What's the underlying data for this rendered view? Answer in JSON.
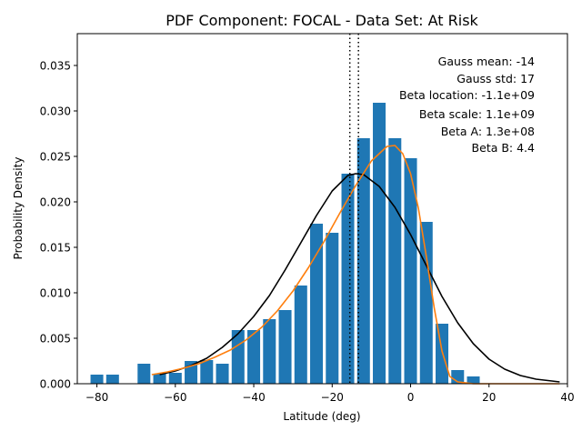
{
  "chart_data": {
    "type": "bar",
    "title": "PDF Component: FOCAL - Data Set: At Risk",
    "xlabel": "Latitude (deg)",
    "ylabel": "Probability Density",
    "xlim": [
      -85,
      40
    ],
    "ylim": [
      0,
      0.0385
    ],
    "xticks": [
      -80,
      -60,
      -40,
      -20,
      0,
      20,
      40
    ],
    "yticks": [
      0.0,
      0.005,
      0.01,
      0.015,
      0.02,
      0.025,
      0.03,
      0.035
    ],
    "ytick_labels": [
      "0.000",
      "0.005",
      "0.010",
      "0.015",
      "0.020",
      "0.025",
      "0.030",
      "0.035"
    ],
    "grid": false,
    "bar_color": "#1f77b4",
    "bar_width": 3.25,
    "bars": {
      "x": [
        -80,
        -76,
        -56,
        -68,
        -64,
        -60,
        -56,
        -52,
        -48,
        -44,
        -40,
        -36,
        -32,
        -28,
        -24,
        -20,
        -16,
        -12,
        -8,
        -4,
        0,
        4,
        8,
        12,
        16,
        20
      ],
      "values": [
        0.001,
        0.001,
        0.0,
        0.0022,
        0.0011,
        0.0012,
        0.0025,
        0.0026,
        0.0022,
        0.0059,
        0.0059,
        0.0071,
        0.0081,
        0.0108,
        0.0176,
        0.0166,
        0.0231,
        0.027,
        0.0309,
        0.027,
        0.0248,
        0.0178,
        0.0066,
        0.0015,
        0.0008,
        0.0
      ]
    },
    "series": [
      {
        "kind": "line",
        "color": "#000000",
        "x": [
          -64,
          -60,
          -56,
          -52,
          -48,
          -44,
          -40,
          -36,
          -32,
          -28,
          -24,
          -20,
          -16,
          -14,
          -12,
          -8,
          -4,
          0,
          4,
          8,
          12,
          16,
          20,
          24,
          28,
          32,
          36,
          38
        ],
        "values": [
          0.001,
          0.0014,
          0.002,
          0.0028,
          0.004,
          0.0055,
          0.0074,
          0.0097,
          0.0125,
          0.0155,
          0.0185,
          0.0212,
          0.0229,
          0.0231,
          0.023,
          0.0217,
          0.0194,
          0.0164,
          0.013,
          0.0096,
          0.0067,
          0.0044,
          0.0027,
          0.0016,
          0.0009,
          0.0005,
          0.0003,
          0.0002
        ]
      },
      {
        "kind": "line",
        "color": "#ff7f0e",
        "x": [
          -66,
          -62,
          -58,
          -54,
          -50,
          -46,
          -42,
          -38,
          -34,
          -30,
          -26,
          -22,
          -18,
          -14,
          -10,
          -6,
          -4,
          -2,
          0,
          2,
          4,
          6,
          8,
          10,
          12,
          14,
          16,
          18,
          22,
          38
        ],
        "values": [
          0.001,
          0.0013,
          0.0017,
          0.0022,
          0.0029,
          0.0037,
          0.0048,
          0.0062,
          0.008,
          0.0102,
          0.0128,
          0.0157,
          0.0188,
          0.0218,
          0.0245,
          0.0261,
          0.0262,
          0.0253,
          0.0231,
          0.0193,
          0.014,
          0.0084,
          0.0036,
          0.0008,
          0.0002,
          0.0001,
          0.0,
          0.0,
          0.0,
          0.0
        ]
      }
    ],
    "vlines": [
      {
        "x": -15.5,
        "style": "dotted",
        "color": "#000000"
      },
      {
        "x": -13.3,
        "style": "dotted",
        "color": "#000000"
      }
    ],
    "annotations": [
      "Gauss mean: -14",
      "Gauss std: 17",
      "Beta location: -1.1e+09",
      "Beta scale: 1.1e+09",
      "Beta A: 1.3e+08",
      "Beta B: 4.4"
    ]
  }
}
